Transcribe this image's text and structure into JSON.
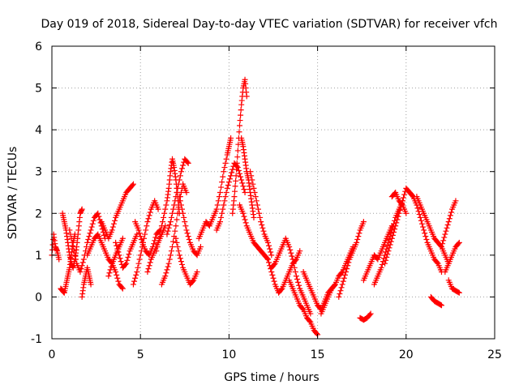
{
  "chart_data": {
    "type": "scatter",
    "title": "Day 019 of 2018, Sidereal Day-to-day VTEC variation (SDTVAR) for receiver vfch",
    "xlabel": "GPS time / hours",
    "ylabel": "SDTVAR / TECUs",
    "xlim": [
      0,
      25
    ],
    "ylim": [
      -1,
      6
    ],
    "xticks": [
      0,
      5,
      10,
      15,
      20,
      25
    ],
    "yticks": [
      -1,
      0,
      1,
      2,
      3,
      4,
      5,
      6
    ],
    "grid": true,
    "marker": "plus",
    "color": "#ff0000",
    "series": [
      {
        "name": "SDTVAR",
        "segments": [
          {
            "x": [
              0.0,
              0.1,
              0.2,
              0.3,
              0.4
            ],
            "y": [
              1.0,
              1.5,
              1.2,
              1.1,
              0.9
            ]
          },
          {
            "x": [
              0.5,
              0.6,
              0.7,
              0.8,
              0.9,
              1.0,
              1.1,
              1.2,
              1.3
            ],
            "y": [
              0.2,
              0.15,
              0.1,
              0.3,
              0.5,
              0.7,
              1.0,
              1.3,
              1.5
            ]
          },
          {
            "x": [
              0.6,
              0.7,
              0.8,
              0.9,
              1.0,
              1.1,
              1.2,
              1.3,
              1.4,
              1.5,
              1.6,
              1.7
            ],
            "y": [
              2.0,
              1.8,
              1.6,
              1.3,
              1.0,
              0.8,
              0.7,
              0.9,
              1.2,
              1.6,
              2.0,
              2.1
            ]
          },
          {
            "x": [
              1.0,
              1.2,
              1.4,
              1.6,
              1.8,
              2.0,
              2.2,
              2.4,
              2.6,
              2.8,
              3.0
            ],
            "y": [
              1.6,
              1.2,
              0.8,
              0.6,
              0.9,
              1.3,
              1.6,
              1.9,
              2.0,
              1.7,
              1.4
            ]
          },
          {
            "x": [
              1.7,
              1.8,
              1.9,
              2.0,
              2.1,
              2.2
            ],
            "y": [
              0.0,
              0.3,
              0.5,
              0.7,
              0.5,
              0.3
            ]
          },
          {
            "x": [
              2.0,
              2.2,
              2.4,
              2.6,
              2.8,
              3.0,
              3.2,
              3.4,
              3.6,
              3.8,
              4.0
            ],
            "y": [
              1.0,
              1.2,
              1.4,
              1.5,
              1.3,
              1.1,
              0.9,
              0.8,
              1.0,
              1.2,
              1.4
            ]
          },
          {
            "x": [
              2.8,
              3.0,
              3.2,
              3.4,
              3.6,
              3.8,
              4.0,
              4.2,
              4.4,
              4.6
            ],
            "y": [
              1.8,
              1.6,
              1.4,
              1.6,
              1.9,
              2.1,
              2.3,
              2.5,
              2.6,
              2.7
            ]
          },
          {
            "x": [
              3.2,
              3.4,
              3.6,
              3.8,
              4.0
            ],
            "y": [
              0.5,
              0.8,
              0.6,
              0.3,
              0.2
            ]
          },
          {
            "x": [
              3.6,
              3.8,
              4.0,
              4.2,
              4.4,
              4.6,
              4.8
            ],
            "y": [
              1.3,
              1.0,
              0.7,
              0.8,
              1.1,
              1.3,
              1.5
            ]
          },
          {
            "x": [
              4.6,
              4.8,
              5.0,
              5.2,
              5.4,
              5.6,
              5.8,
              6.0
            ],
            "y": [
              0.3,
              0.6,
              1.0,
              1.4,
              1.8,
              2.1,
              2.3,
              2.1
            ]
          },
          {
            "x": [
              4.7,
              4.9,
              5.1,
              5.3,
              5.5,
              5.7,
              5.9,
              6.1
            ],
            "y": [
              1.8,
              1.6,
              1.3,
              1.1,
              1.0,
              1.2,
              1.5,
              1.6
            ]
          },
          {
            "x": [
              5.4,
              5.6,
              5.8,
              6.0,
              6.2,
              6.4
            ],
            "y": [
              0.6,
              0.9,
              1.1,
              1.3,
              1.5,
              1.7
            ]
          },
          {
            "x": [
              5.9,
              6.1,
              6.3,
              6.5,
              6.6,
              6.7,
              6.8,
              6.9,
              7.0,
              7.1,
              7.2
            ],
            "y": [
              1.1,
              1.5,
              1.9,
              2.3,
              2.6,
              3.0,
              3.3,
              3.1,
              2.8,
              2.4,
              2.0
            ]
          },
          {
            "x": [
              6.2,
              6.4,
              6.6,
              6.8,
              7.0,
              7.2,
              7.4,
              7.6
            ],
            "y": [
              0.3,
              0.5,
              0.8,
              1.2,
              1.7,
              2.3,
              2.7,
              2.5
            ]
          },
          {
            "x": [
              6.5,
              6.7,
              6.9,
              7.1,
              7.3,
              7.5,
              7.7
            ],
            "y": [
              1.5,
              1.8,
              2.2,
              2.6,
              3.0,
              3.3,
              3.2
            ]
          },
          {
            "x": [
              7.0,
              7.2,
              7.4,
              7.6,
              7.8,
              8.0,
              8.2
            ],
            "y": [
              1.4,
              1.0,
              0.7,
              0.5,
              0.3,
              0.4,
              0.6
            ]
          },
          {
            "x": [
              7.2,
              7.4,
              7.6,
              7.8,
              8.0,
              8.2,
              8.4
            ],
            "y": [
              2.4,
              2.0,
              1.6,
              1.3,
              1.1,
              1.0,
              1.2
            ]
          },
          {
            "x": [
              8.3,
              8.5,
              8.7,
              8.9,
              9.1,
              9.3,
              9.5,
              9.7,
              9.9,
              10.0,
              10.1
            ],
            "y": [
              1.4,
              1.6,
              1.8,
              1.7,
              1.9,
              2.1,
              2.5,
              3.0,
              3.4,
              3.6,
              3.8
            ]
          },
          {
            "x": [
              9.3,
              9.5,
              9.7,
              9.9,
              10.1,
              10.3,
              10.5,
              10.7,
              10.9
            ],
            "y": [
              1.6,
              1.8,
              2.2,
              2.6,
              2.9,
              3.2,
              3.1,
              2.8,
              2.5
            ]
          },
          {
            "x": [
              10.2,
              10.3,
              10.4,
              10.5,
              10.6,
              10.7,
              10.8,
              10.9,
              11.0
            ],
            "y": [
              2.0,
              2.4,
              2.9,
              3.5,
              4.1,
              4.6,
              5.0,
              5.2,
              4.8
            ]
          },
          {
            "x": [
              10.7,
              10.8,
              10.9,
              11.0,
              11.1,
              11.2,
              11.3,
              11.4
            ],
            "y": [
              3.8,
              3.6,
              3.3,
              3.0,
              2.8,
              2.5,
              2.2,
              1.9
            ]
          },
          {
            "x": [
              10.6,
              10.8,
              11.0,
              11.2,
              11.4,
              11.6,
              11.8,
              12.0,
              12.2
            ],
            "y": [
              2.2,
              2.0,
              1.7,
              1.5,
              1.3,
              1.2,
              1.1,
              1.0,
              0.9
            ]
          },
          {
            "x": [
              11.2,
              11.4,
              11.6,
              11.8,
              12.0,
              12.2,
              12.4
            ],
            "y": [
              3.0,
              2.6,
              2.2,
              1.8,
              1.5,
              1.3,
              1.0
            ]
          },
          {
            "x": [
              12.2,
              12.4,
              12.6,
              12.8,
              13.0,
              13.2,
              13.4,
              13.6,
              13.8,
              14.0
            ],
            "y": [
              0.9,
              0.6,
              0.3,
              0.1,
              0.2,
              0.4,
              0.6,
              0.8,
              0.9,
              1.1
            ]
          },
          {
            "x": [
              12.4,
              12.6,
              12.8,
              13.0,
              13.2,
              13.4,
              13.6,
              13.8,
              14.0,
              14.2,
              14.4,
              14.6
            ],
            "y": [
              0.7,
              0.8,
              1.0,
              1.2,
              1.4,
              1.2,
              0.9,
              0.5,
              0.2,
              0.0,
              -0.2,
              -0.4
            ]
          },
          {
            "x": [
              13.4,
              13.6,
              13.8,
              14.0,
              14.2,
              14.4,
              14.6,
              14.8,
              15.0
            ],
            "y": [
              0.4,
              0.2,
              0.0,
              -0.2,
              -0.3,
              -0.5,
              -0.6,
              -0.8,
              -0.9
            ]
          },
          {
            "x": [
              14.2,
              14.4,
              14.6,
              14.8,
              15.0,
              15.2,
              15.4,
              15.6,
              15.8,
              16.0
            ],
            "y": [
              0.6,
              0.4,
              0.2,
              0.0,
              -0.2,
              -0.3,
              -0.1,
              0.1,
              0.2,
              0.3
            ]
          },
          {
            "x": [
              15.2,
              15.4,
              15.6,
              15.8,
              16.0,
              16.2,
              16.4,
              16.6,
              16.8,
              17.0
            ],
            "y": [
              -0.4,
              -0.2,
              0.0,
              0.2,
              0.3,
              0.5,
              0.6,
              0.8,
              1.0,
              1.2
            ]
          },
          {
            "x": [
              16.2,
              16.4,
              16.6,
              16.8,
              17.0,
              17.2,
              17.4,
              17.6
            ],
            "y": [
              0.0,
              0.3,
              0.6,
              0.9,
              1.1,
              1.3,
              1.6,
              1.8
            ]
          },
          {
            "x": [
              17.4,
              17.6,
              17.8,
              18.0
            ],
            "y": [
              -0.5,
              -0.55,
              -0.5,
              -0.4
            ]
          },
          {
            "x": [
              17.6,
              17.8,
              18.0,
              18.2,
              18.4,
              18.6,
              18.8,
              19.0,
              19.2
            ],
            "y": [
              0.4,
              0.6,
              0.8,
              1.0,
              0.9,
              1.1,
              1.3,
              1.5,
              1.7
            ]
          },
          {
            "x": [
              18.2,
              18.4,
              18.6,
              18.8,
              19.0,
              19.2,
              19.4,
              19.6,
              19.8
            ],
            "y": [
              0.3,
              0.5,
              0.7,
              1.0,
              1.3,
              1.6,
              1.9,
              2.1,
              2.3
            ]
          },
          {
            "x": [
              18.8,
              19.0,
              19.2,
              19.4,
              19.6,
              19.8,
              20.0,
              20.2,
              20.4
            ],
            "y": [
              0.8,
              1.1,
              1.4,
              1.7,
              2.0,
              2.3,
              2.6,
              2.5,
              2.4
            ]
          },
          {
            "x": [
              19.2,
              19.4,
              19.6,
              19.8,
              20.0
            ],
            "y": [
              2.4,
              2.5,
              2.3,
              2.2,
              2.0
            ]
          },
          {
            "x": [
              20.2,
              20.4,
              20.6,
              20.8,
              21.0,
              21.2,
              21.4,
              21.6,
              21.8,
              22.0
            ],
            "y": [
              2.5,
              2.4,
              2.2,
              1.9,
              1.6,
              1.3,
              1.1,
              0.9,
              0.8,
              0.6
            ]
          },
          {
            "x": [
              20.6,
              20.8,
              21.0,
              21.2,
              21.4,
              21.6,
              21.8,
              22.0,
              22.2,
              22.4
            ],
            "y": [
              2.4,
              2.2,
              2.0,
              1.8,
              1.6,
              1.4,
              1.3,
              1.2,
              1.0,
              0.8
            ]
          },
          {
            "x": [
              21.4,
              21.6,
              21.8,
              22.0
            ],
            "y": [
              0.0,
              -0.1,
              -0.15,
              -0.2
            ]
          },
          {
            "x": [
              22.0,
              22.2,
              22.4,
              22.6,
              22.8
            ],
            "y": [
              1.2,
              1.5,
              1.8,
              2.1,
              2.3
            ]
          },
          {
            "x": [
              22.2,
              22.4,
              22.6,
              22.8,
              23.0
            ],
            "y": [
              0.6,
              0.8,
              1.0,
              1.2,
              1.3
            ]
          },
          {
            "x": [
              22.4,
              22.6,
              22.8,
              23.0
            ],
            "y": [
              0.4,
              0.2,
              0.15,
              0.1
            ]
          }
        ]
      }
    ]
  }
}
